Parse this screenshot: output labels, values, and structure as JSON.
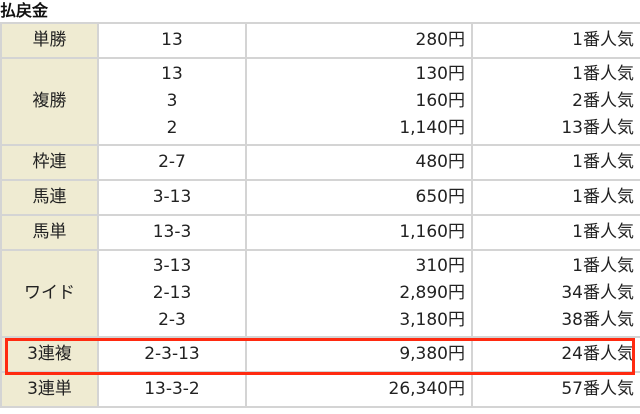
{
  "title": "払戻金",
  "highlight_color": "#ff2a10",
  "rows": [
    {
      "bet": "単勝",
      "entries": [
        {
          "combo": "13",
          "payout": "280円",
          "popularity": "1番人気"
        }
      ]
    },
    {
      "bet": "複勝",
      "entries": [
        {
          "combo": "13",
          "payout": "130円",
          "popularity": "1番人気"
        },
        {
          "combo": "3",
          "payout": "160円",
          "popularity": "2番人気"
        },
        {
          "combo": "2",
          "payout": "1,140円",
          "popularity": "13番人気"
        }
      ]
    },
    {
      "bet": "枠連",
      "entries": [
        {
          "combo": "2-7",
          "payout": "480円",
          "popularity": "1番人気"
        }
      ]
    },
    {
      "bet": "馬連",
      "entries": [
        {
          "combo": "3-13",
          "payout": "650円",
          "popularity": "1番人気"
        }
      ]
    },
    {
      "bet": "馬単",
      "entries": [
        {
          "combo": "13-3",
          "payout": "1,160円",
          "popularity": "1番人気"
        }
      ]
    },
    {
      "bet": "ワイド",
      "entries": [
        {
          "combo": "3-13",
          "payout": "310円",
          "popularity": "1番人気"
        },
        {
          "combo": "2-13",
          "payout": "2,890円",
          "popularity": "34番人気"
        },
        {
          "combo": "2-3",
          "payout": "3,180円",
          "popularity": "38番人気"
        }
      ]
    },
    {
      "bet": "3連複",
      "highlighted": true,
      "entries": [
        {
          "combo": "2-3-13",
          "payout": "9,380円",
          "popularity": "24番人気"
        }
      ]
    },
    {
      "bet": "3連単",
      "entries": [
        {
          "combo": "13-3-2",
          "payout": "26,340円",
          "popularity": "57番人気"
        }
      ]
    }
  ]
}
